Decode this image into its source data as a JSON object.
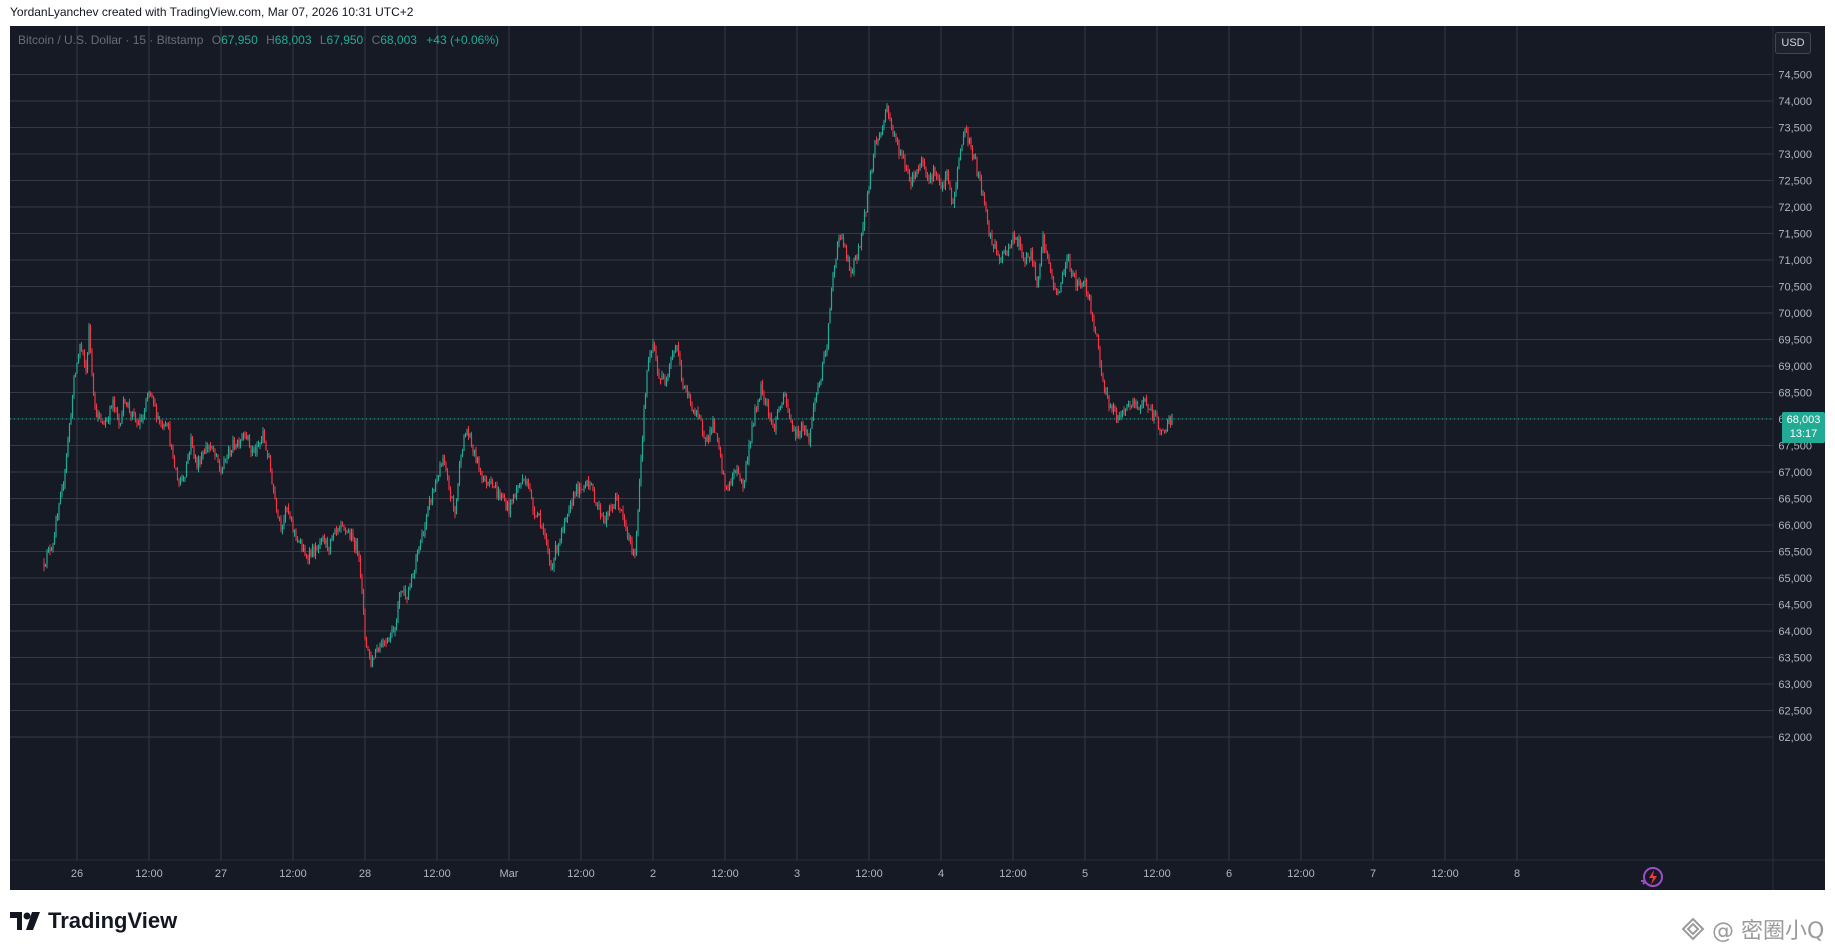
{
  "caption": "YordanLyanchev created with TradingView.com, Mar 07, 2026 10:31 UTC+2",
  "legend": {
    "symbol": "Bitcoin / U.S. Dollar · 15 · Bitstamp",
    "o_label": "O",
    "o_value": "67,950",
    "h_label": "H",
    "h_value": "68,003",
    "l_label": "L",
    "l_value": "67,950",
    "c_label": "C",
    "c_value": "68,003",
    "change": "+43 (+0.06%)"
  },
  "currency_button": "USD",
  "price_tag": {
    "price": "68,003",
    "countdown": "13:17"
  },
  "brand": "TradingView",
  "watermark": "@ 密圈小Q",
  "colors": {
    "background": "#161a25",
    "grid": "#363a45",
    "up": "#22ab94",
    "down": "#f23645",
    "axis_text": "#b2b5be"
  },
  "icons": [
    "tradingview-logo-icon",
    "bolt-icon",
    "watermark-icon"
  ],
  "chart_data": {
    "type": "candlestick",
    "symbol": "Bitcoin / U.S. Dollar",
    "interval": "15",
    "exchange": "Bitstamp",
    "ylim": [
      62000,
      74700
    ],
    "y_ticks": [
      62000,
      62500,
      63000,
      63500,
      64000,
      64500,
      65000,
      65500,
      66000,
      66500,
      67000,
      67500,
      68000,
      68500,
      69000,
      69500,
      70000,
      70500,
      71000,
      71500,
      72000,
      72500,
      73000,
      73500,
      74000,
      74500
    ],
    "y_tick_labels": [
      "62,000",
      "62,500",
      "63,000",
      "63,500",
      "64,000",
      "64,500",
      "65,000",
      "65,500",
      "66,000",
      "66,500",
      "67,000",
      "67,500",
      "68,000",
      "68,500",
      "69,000",
      "69,500",
      "70,000",
      "70,500",
      "71,000",
      "71,500",
      "72,000",
      "72,500",
      "73,000",
      "73,500",
      "74,000",
      "74,500"
    ],
    "x_ticks": [
      {
        "label": "26",
        "t": 0
      },
      {
        "label": "12:00",
        "t": 12
      },
      {
        "label": "27",
        "t": 24
      },
      {
        "label": "12:00",
        "t": 36
      },
      {
        "label": "28",
        "t": 48
      },
      {
        "label": "12:00",
        "t": 60
      },
      {
        "label": "Mar",
        "t": 72
      },
      {
        "label": "12:00",
        "t": 84
      },
      {
        "label": "2",
        "t": 96
      },
      {
        "label": "12:00",
        "t": 108
      },
      {
        "label": "3",
        "t": 120
      },
      {
        "label": "12:00",
        "t": 132
      },
      {
        "label": "4",
        "t": 144
      },
      {
        "label": "12:00",
        "t": 156
      },
      {
        "label": "5",
        "t": 168
      },
      {
        "label": "12:00",
        "t": 180
      },
      {
        "label": "6",
        "t": 192
      },
      {
        "label": "12:00",
        "t": 204
      },
      {
        "label": "7",
        "t": 216
      },
      {
        "label": "12:00",
        "t": 228
      },
      {
        "label": "8",
        "t": 240
      }
    ],
    "x_range_hours": [
      -5.5,
      245
    ],
    "close_path": [
      [
        -5.5,
        65300
      ],
      [
        -4,
        65700
      ],
      [
        -2.5,
        66600
      ],
      [
        -1.5,
        67600
      ],
      [
        -0.5,
        68700
      ],
      [
        0.5,
        69400
      ],
      [
        1.5,
        68900
      ],
      [
        2,
        69700
      ],
      [
        3,
        68200
      ],
      [
        4,
        67900
      ],
      [
        5,
        68000
      ],
      [
        6,
        68300
      ],
      [
        7,
        67900
      ],
      [
        8,
        68400
      ],
      [
        9,
        68100
      ],
      [
        10,
        67900
      ],
      [
        11,
        68000
      ],
      [
        12,
        68500
      ],
      [
        13,
        68200
      ],
      [
        14,
        67900
      ],
      [
        15,
        68000
      ],
      [
        16,
        67200
      ],
      [
        17,
        66800
      ],
      [
        18,
        67000
      ],
      [
        19,
        67600
      ],
      [
        20,
        67100
      ],
      [
        21,
        67400
      ],
      [
        22,
        67500
      ],
      [
        23,
        67300
      ],
      [
        24,
        67000
      ],
      [
        25,
        67300
      ],
      [
        26,
        67500
      ],
      [
        27,
        67600
      ],
      [
        28,
        67800
      ],
      [
        29,
        67400
      ],
      [
        30,
        67400
      ],
      [
        31,
        67700
      ],
      [
        32,
        67200
      ],
      [
        33,
        66500
      ],
      [
        34,
        66000
      ],
      [
        35,
        66300
      ],
      [
        36,
        65900
      ],
      [
        37,
        65700
      ],
      [
        38,
        65400
      ],
      [
        39,
        65500
      ],
      [
        40,
        65500
      ],
      [
        41,
        65700
      ],
      [
        42,
        65600
      ],
      [
        43,
        65800
      ],
      [
        44,
        65900
      ],
      [
        45,
        65900
      ],
      [
        46,
        65700
      ],
      [
        47,
        65500
      ],
      [
        48,
        63900
      ],
      [
        49,
        63400
      ],
      [
        50,
        63700
      ],
      [
        51,
        63800
      ],
      [
        52,
        63900
      ],
      [
        53,
        64100
      ],
      [
        54,
        64800
      ],
      [
        55,
        64700
      ],
      [
        56,
        65000
      ],
      [
        57,
        65600
      ],
      [
        58,
        66000
      ],
      [
        59,
        66500
      ],
      [
        60,
        66900
      ],
      [
        61,
        67200
      ],
      [
        62,
        66700
      ],
      [
        63,
        66200
      ],
      [
        64,
        67400
      ],
      [
        65,
        67800
      ],
      [
        66,
        67400
      ],
      [
        67,
        67100
      ],
      [
        68,
        66800
      ],
      [
        69,
        66900
      ],
      [
        70,
        66600
      ],
      [
        71,
        66500
      ],
      [
        72,
        66300
      ],
      [
        73,
        66600
      ],
      [
        74,
        66800
      ],
      [
        75,
        66900
      ],
      [
        76,
        66300
      ],
      [
        77,
        66200
      ],
      [
        78,
        65700
      ],
      [
        79,
        65200
      ],
      [
        80,
        65600
      ],
      [
        81,
        65900
      ],
      [
        82,
        66200
      ],
      [
        83,
        66700
      ],
      [
        84,
        66600
      ],
      [
        85,
        66900
      ],
      [
        86,
        66600
      ],
      [
        87,
        66300
      ],
      [
        88,
        66100
      ],
      [
        89,
        66300
      ],
      [
        90,
        66500
      ],
      [
        91,
        66100
      ],
      [
        92,
        65700
      ],
      [
        93,
        65400
      ],
      [
        94,
        67300
      ],
      [
        95,
        68900
      ],
      [
        96,
        69400
      ],
      [
        97,
        68800
      ],
      [
        98,
        68700
      ],
      [
        99,
        69200
      ],
      [
        100,
        69400
      ],
      [
        101,
        68600
      ],
      [
        102,
        68400
      ],
      [
        103,
        68100
      ],
      [
        104,
        67900
      ],
      [
        105,
        67600
      ],
      [
        106,
        67900
      ],
      [
        107,
        67400
      ],
      [
        108,
        66700
      ],
      [
        109,
        66800
      ],
      [
        110,
        67100
      ],
      [
        111,
        66700
      ],
      [
        112,
        67500
      ],
      [
        113,
        68100
      ],
      [
        114,
        68600
      ],
      [
        115,
        68300
      ],
      [
        116,
        67800
      ],
      [
        117,
        68200
      ],
      [
        118,
        68400
      ],
      [
        119,
        67900
      ],
      [
        120,
        67700
      ],
      [
        121,
        67900
      ],
      [
        122,
        67600
      ],
      [
        123,
        68400
      ],
      [
        124,
        68800
      ],
      [
        125,
        69400
      ],
      [
        126,
        70700
      ],
      [
        127,
        71500
      ],
      [
        128,
        71200
      ],
      [
        129,
        70700
      ],
      [
        130,
        71100
      ],
      [
        131,
        71600
      ],
      [
        132,
        72400
      ],
      [
        133,
        73200
      ],
      [
        134,
        73400
      ],
      [
        135,
        73900
      ],
      [
        136,
        73400
      ],
      [
        137,
        73100
      ],
      [
        138,
        72800
      ],
      [
        139,
        72500
      ],
      [
        140,
        72700
      ],
      [
        141,
        72900
      ],
      [
        142,
        72500
      ],
      [
        143,
        72700
      ],
      [
        144,
        72300
      ],
      [
        145,
        72600
      ],
      [
        146,
        72000
      ],
      [
        147,
        72900
      ],
      [
        148,
        73500
      ],
      [
        149,
        73100
      ],
      [
        150,
        72700
      ],
      [
        151,
        72200
      ],
      [
        152,
        71500
      ],
      [
        153,
        71200
      ],
      [
        154,
        71000
      ],
      [
        155,
        71200
      ],
      [
        156,
        71400
      ],
      [
        157,
        71300
      ],
      [
        158,
        71000
      ],
      [
        159,
        71100
      ],
      [
        160,
        70600
      ],
      [
        161,
        71400
      ],
      [
        162,
        70900
      ],
      [
        163,
        70400
      ],
      [
        164,
        70500
      ],
      [
        165,
        71100
      ],
      [
        166,
        70700
      ],
      [
        167,
        70500
      ],
      [
        168,
        70600
      ],
      [
        169,
        70100
      ],
      [
        170,
        69500
      ],
      [
        171,
        68700
      ],
      [
        172,
        68300
      ],
      [
        173,
        68100
      ],
      [
        174,
        68000
      ],
      [
        175,
        68200
      ],
      [
        176,
        68300
      ],
      [
        177,
        68200
      ],
      [
        178,
        68400
      ],
      [
        179,
        68100
      ],
      [
        180,
        68000
      ],
      [
        181,
        67700
      ],
      [
        182,
        67950
      ],
      [
        182.5,
        68003
      ]
    ],
    "last_price": 68003,
    "change": "+43 (+0.06%)"
  }
}
